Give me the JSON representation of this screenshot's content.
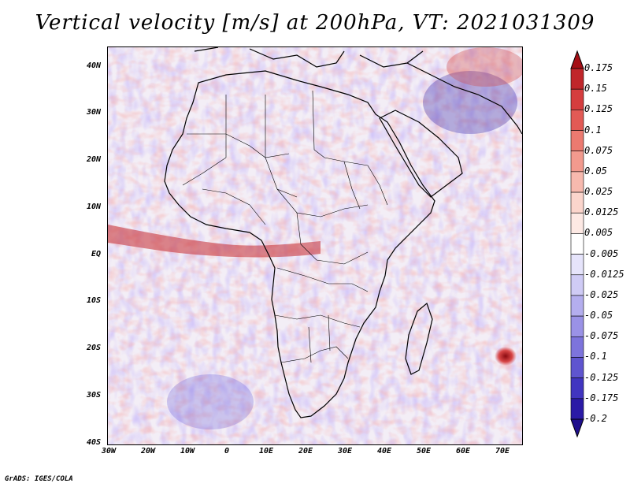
{
  "title": "Vertical velocity [m/s] at 200hPa, VT: 2021031309",
  "credit": "GrADS: IGES/COLA",
  "map": {
    "projection": "latlon",
    "lon_range": [
      -30,
      75
    ],
    "lat_range": [
      -40,
      45
    ],
    "lat_ticks": [
      "40N",
      "30N",
      "20N",
      "10N",
      "EQ",
      "10S",
      "20S",
      "30S",
      "40S"
    ],
    "lon_ticks": [
      "30W",
      "20W",
      "10W",
      "0",
      "10E",
      "20E",
      "30E",
      "40E",
      "50E",
      "60E",
      "70E"
    ],
    "field_description": "Vertical velocity at 200hPa over Africa; red = rising, blue = sinking"
  },
  "colorbar": {
    "labels": [
      "0.175",
      "0.15",
      "0.125",
      "0.1",
      "0.075",
      "0.05",
      "0.025",
      "0.0125",
      "0.005",
      "-0.005",
      "-0.0125",
      "-0.025",
      "-0.05",
      "-0.075",
      "-0.1",
      "-0.125",
      "-0.175",
      "-0.2"
    ],
    "colors": [
      "#a50f15",
      "#c0262a",
      "#d53d3e",
      "#e25a55",
      "#ec7a70",
      "#f29a8e",
      "#f7b9ae",
      "#fbd5cc",
      "#fde9e4",
      "#ffffff",
      "#e6e4fb",
      "#cfcbf5",
      "#b4aeee",
      "#9a92e6",
      "#7d74dc",
      "#5f55cf",
      "#4135c0",
      "#2b1aa6",
      "#1f0f8c"
    ]
  }
}
